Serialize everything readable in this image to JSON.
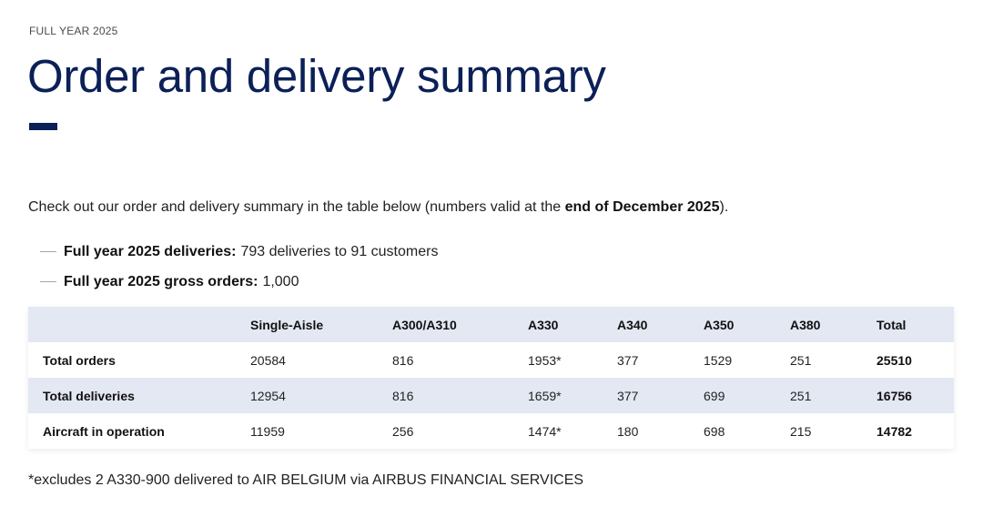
{
  "header": {
    "eyebrow": "FULL YEAR 2025",
    "title": "Order and delivery summary"
  },
  "intro": {
    "text_before": "Check out our order and delivery summary in the table below (numbers valid at the ",
    "bold": "end of December 2025",
    "text_after": ")."
  },
  "bullets": [
    {
      "label": "Full year 2025 deliveries:",
      "value": "793 deliveries to 91 customers"
    },
    {
      "label": "Full year 2025 gross orders:",
      "value": "1,000"
    }
  ],
  "table": {
    "columns": [
      "",
      "Single-Aisle",
      "A300/A310",
      "A330",
      "A340",
      "A350",
      "A380",
      "Total"
    ],
    "rows": [
      {
        "label": "Total orders",
        "cells": [
          "20584",
          "816",
          "1953*",
          "377",
          "1529",
          "251",
          "25510"
        ]
      },
      {
        "label": "Total deliveries",
        "cells": [
          "12954",
          "816",
          "1659*",
          "377",
          "699",
          "251",
          "16756"
        ]
      },
      {
        "label": "Aircraft in operation",
        "cells": [
          "11959",
          "256",
          "1474*",
          "180",
          "698",
          "215",
          "14782"
        ]
      }
    ]
  },
  "footnote": "*excludes 2 A330-900 delivered to AIR BELGIUM via AIRBUS FINANCIAL SERVICES",
  "colors": {
    "brand_navy": "#0b2057",
    "table_band": "#e3e8f3"
  }
}
